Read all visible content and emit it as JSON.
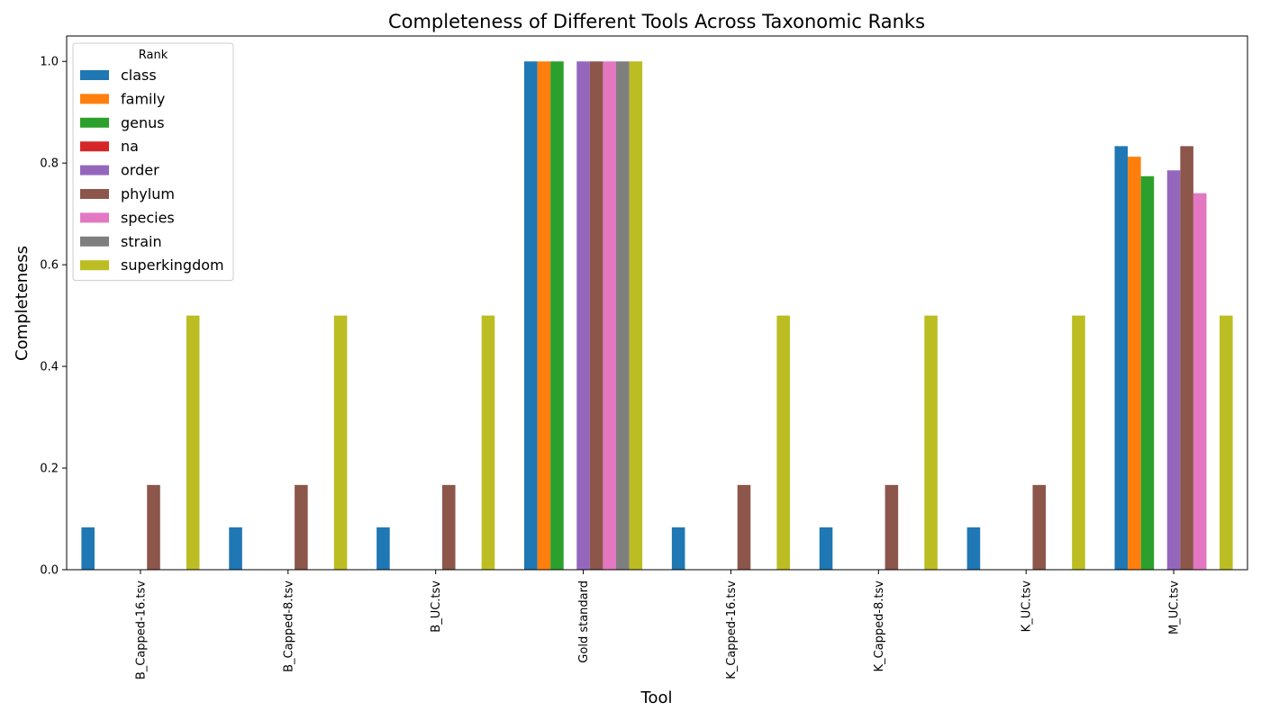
{
  "chart_data": {
    "type": "bar",
    "title": "Completeness of Different Tools Across Taxonomic Ranks",
    "xlabel": "Tool",
    "ylabel": "Completeness",
    "ylim": [
      0,
      1.05
    ],
    "yticks": [
      "0.0",
      "0.2",
      "0.4",
      "0.6",
      "0.8",
      "1.0"
    ],
    "categories": [
      "B_Capped-16.tsv",
      "B_Capped-8.tsv",
      "B_UC.tsv",
      "Gold standard",
      "K_Capped-16.tsv",
      "K_Capped-8.tsv",
      "K_UC.tsv",
      "M_UC.tsv"
    ],
    "legend": {
      "title": "Rank",
      "position": "upper-left"
    },
    "grid": false,
    "series": [
      {
        "name": "class",
        "color": "#1f77b4",
        "values": [
          0.0833,
          0.0833,
          0.0833,
          1.0,
          0.0833,
          0.0833,
          0.0833,
          0.8333
        ]
      },
      {
        "name": "family",
        "color": "#ff7f0e",
        "values": [
          0,
          0,
          0,
          1.0,
          0,
          0,
          0,
          0.8125
        ]
      },
      {
        "name": "genus",
        "color": "#2ca02c",
        "values": [
          0,
          0,
          0,
          1.0,
          0,
          0,
          0,
          0.7742
        ]
      },
      {
        "name": "na",
        "color": "#d62728",
        "values": [
          0,
          0,
          0,
          0,
          0,
          0,
          0,
          0
        ]
      },
      {
        "name": "order",
        "color": "#9467bd",
        "values": [
          0,
          0,
          0,
          1.0,
          0,
          0,
          0,
          0.7857
        ]
      },
      {
        "name": "phylum",
        "color": "#8c564b",
        "values": [
          0.1667,
          0.1667,
          0.1667,
          1.0,
          0.1667,
          0.1667,
          0.1667,
          0.8333
        ]
      },
      {
        "name": "species",
        "color": "#e377c2",
        "values": [
          0,
          0,
          0,
          1.0,
          0,
          0,
          0,
          0.7407
        ]
      },
      {
        "name": "strain",
        "color": "#7f7f7f",
        "values": [
          0,
          0,
          0,
          1.0,
          0,
          0,
          0,
          0
        ]
      },
      {
        "name": "superkingdom",
        "color": "#bcbd22",
        "values": [
          0.5,
          0.5,
          0.5,
          1.0,
          0.5,
          0.5,
          0.5,
          0.5
        ]
      }
    ]
  }
}
